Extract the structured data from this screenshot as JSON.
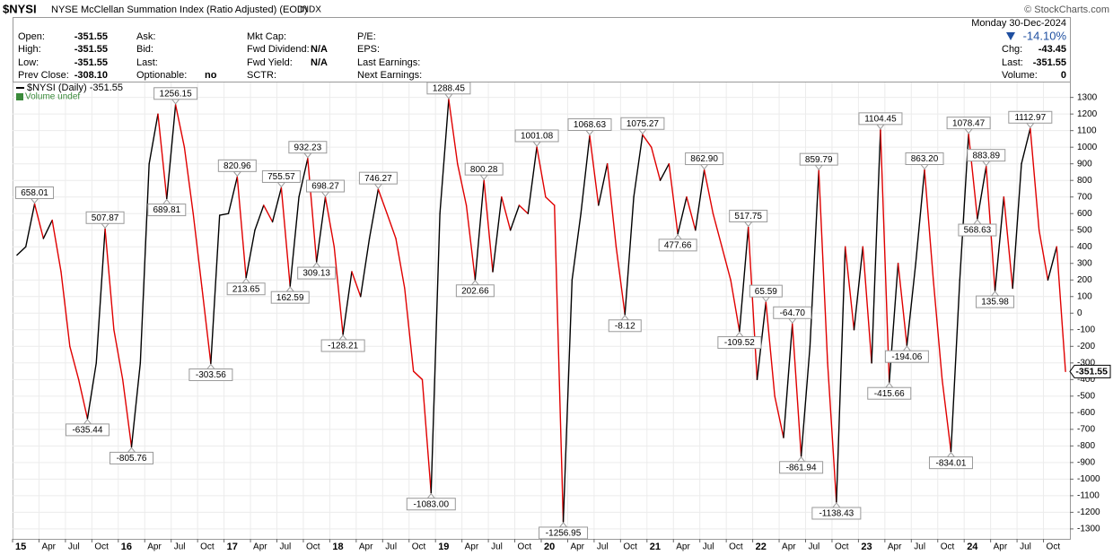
{
  "header": {
    "symbol": "$NYSI",
    "name": "NYSE McClellan Summation Index (Ratio Adjusted) (EOD)",
    "exchange": "INDX",
    "credit": "© StockCharts.com"
  },
  "quote": {
    "columns": [
      {
        "rows": [
          {
            "label": "Open:",
            "value": "-351.55"
          },
          {
            "label": "High:",
            "value": "-351.55"
          },
          {
            "label": "Low:",
            "value": "-351.55"
          },
          {
            "label": "Prev Close:",
            "value": "-308.10"
          }
        ]
      },
      {
        "rows": [
          {
            "label": "Ask:"
          },
          {
            "label": "Bid:"
          },
          {
            "label": "Last:"
          },
          {
            "label": "Optionable:",
            "value": "no"
          }
        ]
      },
      {
        "rows": [
          {
            "label": "Mkt Cap:"
          },
          {
            "label": "Fwd Dividend:",
            "value": "N/A"
          },
          {
            "label": "Fwd Yield:",
            "value": "N/A"
          },
          {
            "label": "SCTR:"
          }
        ]
      },
      {
        "rows": [
          {
            "label": "P/E:"
          },
          {
            "label": "EPS:"
          },
          {
            "label": "Last Earnings:"
          },
          {
            "label": "Next Earnings:"
          }
        ]
      }
    ],
    "date": "Monday  30-Dec-2024",
    "change_pct": "-14.10%",
    "right_rows": [
      {
        "label": "Chg:",
        "value": "-43.45"
      },
      {
        "label": "Last:",
        "value": "-351.55"
      },
      {
        "label": "Volume:",
        "value": "0"
      }
    ]
  },
  "chart_data": {
    "type": "line",
    "volume_label": "Volume undef",
    "up_color": "#000000",
    "down_color": "#e00000",
    "grid": true,
    "ylim": [
      -1360,
      1390
    ],
    "yticks": [
      -1300,
      -1200,
      -1100,
      -1000,
      -900,
      -800,
      -700,
      -600,
      -500,
      -400,
      -300,
      -200,
      -100,
      0,
      100,
      200,
      300,
      400,
      500,
      600,
      700,
      800,
      900,
      1000,
      1100,
      1200,
      1300
    ],
    "xticks": [
      {
        "value": "2015-01",
        "label": "15"
      },
      {
        "value": "2015-04",
        "label": "Apr"
      },
      {
        "value": "2015-07",
        "label": "Jul"
      },
      {
        "value": "2015-10",
        "label": "Oct"
      },
      {
        "value": "2016-01",
        "label": "16"
      },
      {
        "value": "2016-04",
        "label": "Apr"
      },
      {
        "value": "2016-07",
        "label": "Jul"
      },
      {
        "value": "2016-10",
        "label": "Oct"
      },
      {
        "value": "2017-01",
        "label": "17"
      },
      {
        "value": "2017-04",
        "label": "Apr"
      },
      {
        "value": "2017-07",
        "label": "Jul"
      },
      {
        "value": "2017-10",
        "label": "Oct"
      },
      {
        "value": "2018-01",
        "label": "18"
      },
      {
        "value": "2018-04",
        "label": "Apr"
      },
      {
        "value": "2018-07",
        "label": "Jul"
      },
      {
        "value": "2018-10",
        "label": "Oct"
      },
      {
        "value": "2019-01",
        "label": "19"
      },
      {
        "value": "2019-04",
        "label": "Apr"
      },
      {
        "value": "2019-07",
        "label": "Jul"
      },
      {
        "value": "2019-10",
        "label": "Oct"
      },
      {
        "value": "2020-01",
        "label": "20"
      },
      {
        "value": "2020-04",
        "label": "Apr"
      },
      {
        "value": "2020-07",
        "label": "Jul"
      },
      {
        "value": "2020-10",
        "label": "Oct"
      },
      {
        "value": "2021-01",
        "label": "21"
      },
      {
        "value": "2021-04",
        "label": "Apr"
      },
      {
        "value": "2021-07",
        "label": "Jul"
      },
      {
        "value": "2021-10",
        "label": "Oct"
      },
      {
        "value": "2022-01",
        "label": "22"
      },
      {
        "value": "2022-04",
        "label": "Apr"
      },
      {
        "value": "2022-07",
        "label": "Jul"
      },
      {
        "value": "2022-10",
        "label": "Oct"
      },
      {
        "value": "2023-01",
        "label": "23"
      },
      {
        "value": "2023-04",
        "label": "Apr"
      },
      {
        "value": "2023-07",
        "label": "Jul"
      },
      {
        "value": "2023-10",
        "label": "Oct"
      },
      {
        "value": "2024-01",
        "label": "24"
      },
      {
        "value": "2024-04",
        "label": "Apr"
      },
      {
        "value": "2024-07",
        "label": "Jul"
      },
      {
        "value": "2024-10",
        "label": "Oct"
      }
    ],
    "x": [
      "2015-01",
      "2015-02",
      "2015-03",
      "2015-04",
      "2015-05",
      "2015-06",
      "2015-07",
      "2015-08",
      "2015-09",
      "2015-10",
      "2015-11",
      "2015-12",
      "2016-01",
      "2016-02",
      "2016-03",
      "2016-04",
      "2016-05",
      "2016-06",
      "2016-07",
      "2016-08",
      "2016-09",
      "2016-10",
      "2016-11",
      "2016-12",
      "2017-01",
      "2017-02",
      "2017-03",
      "2017-04",
      "2017-05",
      "2017-06",
      "2017-07",
      "2017-08",
      "2017-09",
      "2017-10",
      "2017-11",
      "2017-12",
      "2018-01",
      "2018-02",
      "2018-03",
      "2018-04",
      "2018-05",
      "2018-06",
      "2018-07",
      "2018-08",
      "2018-09",
      "2018-10",
      "2018-11",
      "2018-12",
      "2019-01",
      "2019-02",
      "2019-03",
      "2019-04",
      "2019-05",
      "2019-06",
      "2019-07",
      "2019-08",
      "2019-09",
      "2019-10",
      "2019-11",
      "2019-12",
      "2020-01",
      "2020-02",
      "2020-03",
      "2020-04",
      "2020-05",
      "2020-06",
      "2020-07",
      "2020-08",
      "2020-09",
      "2020-10",
      "2020-11",
      "2020-12",
      "2021-01",
      "2021-02",
      "2021-03",
      "2021-04",
      "2021-05",
      "2021-06",
      "2021-07",
      "2021-08",
      "2021-09",
      "2021-10",
      "2021-11",
      "2021-12",
      "2022-01",
      "2022-02",
      "2022-03",
      "2022-04",
      "2022-05",
      "2022-06",
      "2022-07",
      "2022-08",
      "2022-09",
      "2022-10",
      "2022-11",
      "2022-12",
      "2023-01",
      "2023-02",
      "2023-03",
      "2023-04",
      "2023-05",
      "2023-06",
      "2023-07",
      "2023-08",
      "2023-09",
      "2023-10",
      "2023-11",
      "2023-12",
      "2024-01",
      "2024-02",
      "2024-03",
      "2024-04",
      "2024-05",
      "2024-06",
      "2024-07",
      "2024-08",
      "2024-09",
      "2024-10",
      "2024-11",
      "2024-12"
    ],
    "series": [
      {
        "name": "$NYSI (Daily)",
        "values": [
          350,
          400,
          658.01,
          450,
          560,
          250,
          -200,
          -400,
          -635.44,
          -300,
          507.87,
          -100,
          -400,
          -805.76,
          -300,
          900,
          1200,
          689.81,
          1256.15,
          1000,
          600,
          150,
          -303.56,
          590,
          600,
          820.96,
          213.65,
          500,
          650,
          550,
          755.57,
          162.59,
          700,
          932.23,
          309.13,
          698.27,
          400,
          -128.21,
          250,
          100,
          450,
          746.27,
          600,
          450,
          150,
          -350,
          -400,
          -1083,
          600,
          1288.45,
          900,
          650,
          202.66,
          800.28,
          250,
          700,
          500,
          650,
          600,
          1001.08,
          700,
          650,
          -1256.95,
          200,
          600,
          1068.63,
          650,
          900,
          400,
          -8.12,
          700,
          1075.27,
          1000,
          800,
          900,
          477.66,
          700,
          500,
          862.9,
          600,
          400,
          200,
          -109.52,
          517.75,
          -400,
          65.59,
          -500,
          -750,
          -64.7,
          -861.94,
          -200,
          859.79,
          -300,
          -1138.43,
          400,
          -100,
          400,
          -300,
          1104.45,
          -415.66,
          300,
          -194.06,
          300,
          863.2,
          200,
          -400,
          -834.01,
          200,
          1078.47,
          568.63,
          883.89,
          135.98,
          700,
          150,
          900,
          1112.97,
          500,
          200,
          400,
          -351.55
        ],
        "value_labels": [
          null,
          null,
          "658.01",
          null,
          null,
          null,
          null,
          null,
          "-635.44",
          null,
          "507.87",
          null,
          null,
          "-805.76",
          null,
          null,
          null,
          "689.81",
          "1256.15",
          null,
          null,
          null,
          "-303.56",
          null,
          null,
          "820.96",
          "213.65",
          null,
          null,
          null,
          "755.57",
          "162.59",
          null,
          "932.23",
          "309.13",
          "698.27",
          null,
          "-128.21",
          null,
          null,
          null,
          "746.27",
          null,
          null,
          null,
          null,
          null,
          "-1083.00",
          null,
          "1288.45",
          null,
          null,
          "202.66",
          "800.28",
          null,
          null,
          null,
          null,
          null,
          "1001.08",
          null,
          null,
          "-1256.95",
          null,
          null,
          "1068.63",
          null,
          null,
          null,
          "-8.12",
          null,
          "1075.27",
          null,
          null,
          null,
          "477.66",
          null,
          null,
          "862.90",
          null,
          null,
          null,
          "-109.52",
          "517.75",
          null,
          "65.59",
          null,
          null,
          "-64.70",
          "-861.94",
          null,
          "859.79",
          null,
          "-1138.43",
          null,
          null,
          null,
          null,
          "1104.45",
          "-415.66",
          null,
          "-194.06",
          null,
          "863.20",
          null,
          null,
          "-834.01",
          null,
          "1078.47",
          "568.63",
          "883.89",
          "135.98",
          null,
          null,
          null,
          "1112.97",
          null,
          null,
          null,
          null
        ]
      }
    ]
  }
}
